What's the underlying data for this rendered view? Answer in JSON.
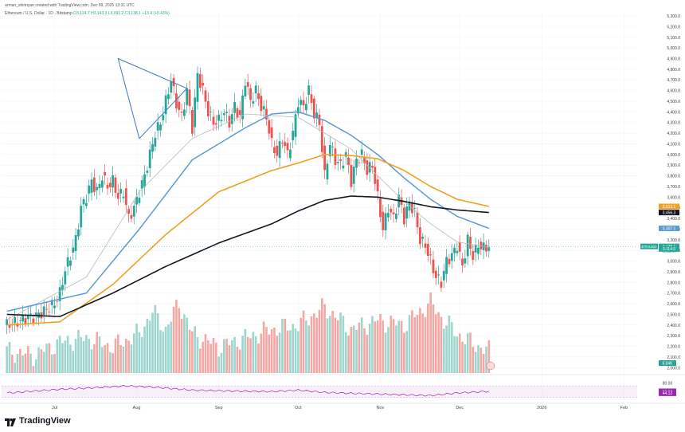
{
  "header": {
    "author_line": "arman_shirinyan created with TradingView.com, Dec 09, 2025 13:31 UTC",
    "symbol_line": "Ethereum / U.S. Dollar · 1D · Bitstamp",
    "ohlc_line": "O3,124.7 H3,143.3 L3,091.2 C3,138.1 +13.4 (+0.43%)"
  },
  "brand": {
    "name": "TradingView"
  },
  "colors": {
    "up": "#26a69a",
    "down": "#ef5350",
    "vol_up": "#9fd5cf",
    "vol_down": "#f4a8a6",
    "ma_fast": "#b5bcbc",
    "ma_mid": "#5b9bd5",
    "ma_slow": "#f0a020",
    "ma_long": "#131722",
    "triangle": "#3c78c8",
    "rsi": "#9c27b0"
  },
  "chart_data": {
    "type": "candlestick",
    "title": "Ethereum / U.S. Dollar",
    "interval": "1D",
    "exchange": "Bitstamp",
    "ylim": [
      1950,
      5330
    ],
    "price_ticks": [
      2000,
      2100,
      2200,
      2300,
      2400,
      2500,
      2600,
      2700,
      2800,
      2900,
      3000,
      3100,
      3200,
      3300,
      3400,
      3500,
      3600,
      3700,
      3800,
      3900,
      4000,
      4100,
      4200,
      4300,
      4400,
      4500,
      4600,
      4700,
      4800,
      4900,
      5000,
      5100,
      5200,
      5300
    ],
    "price_tick_labels": [
      "2,000.0",
      "2,100.0",
      "2,200.0",
      "2,300.0",
      "2,400.0",
      "2,500.0",
      "2,600.0",
      "2,700.0",
      "2,800.0",
      "2,900.0",
      "3,000.0",
      "3,100.0",
      "3,200.0",
      "3,300.0",
      "3,400.0",
      "3,500.0",
      "3,600.0",
      "3,700.0",
      "3,800.0",
      "3,900.0",
      "4,000.0",
      "4,100.0",
      "4,200.0",
      "4,300.0",
      "4,400.0",
      "4,500.0",
      "4,600.0",
      "4,700.0",
      "4,800.0",
      "4,900.0",
      "5,000.0",
      "5,100.0",
      "5,200.0",
      "5,300.0"
    ],
    "x_months": [
      {
        "label": "Jul",
        "day": 18
      },
      {
        "label": "Aug",
        "day": 49
      },
      {
        "label": "Sep",
        "day": 80
      },
      {
        "label": "Oct",
        "day": 110
      },
      {
        "label": "Nov",
        "day": 141
      },
      {
        "label": "Dec",
        "day": 171
      },
      {
        "label": "2026",
        "day": 202
      },
      {
        "label": "Feb",
        "day": 233
      }
    ],
    "last_day": 182,
    "closes": [
      [
        0,
        2400
      ],
      [
        4,
        2430
      ],
      [
        8,
        2480
      ],
      [
        10,
        2470
      ],
      [
        14,
        2530
      ],
      [
        18,
        2600
      ],
      [
        20,
        2700
      ],
      [
        22,
        2920
      ],
      [
        24,
        3050
      ],
      [
        26,
        3200
      ],
      [
        28,
        3500
      ],
      [
        30,
        3600
      ],
      [
        32,
        3750
      ],
      [
        34,
        3650
      ],
      [
        36,
        3800
      ],
      [
        38,
        3700
      ],
      [
        40,
        3750
      ],
      [
        42,
        3600
      ],
      [
        44,
        3650
      ],
      [
        46,
        3400
      ],
      [
        48,
        3500
      ],
      [
        50,
        3650
      ],
      [
        52,
        3800
      ],
      [
        54,
        4000
      ],
      [
        56,
        4200
      ],
      [
        58,
        4300
      ],
      [
        60,
        4500
      ],
      [
        62,
        4700
      ],
      [
        64,
        4480
      ],
      [
        66,
        4350
      ],
      [
        68,
        4600
      ],
      [
        70,
        4250
      ],
      [
        72,
        4750
      ],
      [
        74,
        4600
      ],
      [
        76,
        4400
      ],
      [
        78,
        4300
      ],
      [
        80,
        4320
      ],
      [
        82,
        4400
      ],
      [
        84,
        4300
      ],
      [
        86,
        4450
      ],
      [
        88,
        4350
      ],
      [
        90,
        4700
      ],
      [
        92,
        4500
      ],
      [
        94,
        4600
      ],
      [
        96,
        4450
      ],
      [
        98,
        4350
      ],
      [
        100,
        4100
      ],
      [
        102,
        4000
      ],
      [
        104,
        4150
      ],
      [
        106,
        4000
      ],
      [
        108,
        4200
      ],
      [
        110,
        4500
      ],
      [
        112,
        4450
      ],
      [
        114,
        4600
      ],
      [
        116,
        4380
      ],
      [
        118,
        4300
      ],
      [
        120,
        3800
      ],
      [
        122,
        4100
      ],
      [
        124,
        3950
      ],
      [
        126,
        3900
      ],
      [
        128,
        4000
      ],
      [
        130,
        3750
      ],
      [
        132,
        3950
      ],
      [
        134,
        4000
      ],
      [
        136,
        3850
      ],
      [
        138,
        3900
      ],
      [
        140,
        3600
      ],
      [
        142,
        3300
      ],
      [
        144,
        3500
      ],
      [
        146,
        3400
      ],
      [
        148,
        3600
      ],
      [
        150,
        3400
      ],
      [
        152,
        3550
      ],
      [
        154,
        3450
      ],
      [
        156,
        3200
      ],
      [
        158,
        3150
      ],
      [
        160,
        3000
      ],
      [
        162,
        2850
      ],
      [
        164,
        2800
      ],
      [
        166,
        3000
      ],
      [
        168,
        3050
      ],
      [
        170,
        3150
      ],
      [
        172,
        2950
      ],
      [
        174,
        3200
      ],
      [
        176,
        3050
      ],
      [
        178,
        3150
      ],
      [
        180,
        3120
      ],
      [
        182,
        3138
      ]
    ],
    "volume_max": 1,
    "volume_scale_days": [
      [
        0,
        0.25
      ],
      [
        10,
        0.2
      ],
      [
        20,
        0.35
      ],
      [
        30,
        0.4
      ],
      [
        40,
        0.3
      ],
      [
        50,
        0.45
      ],
      [
        55,
        0.7
      ],
      [
        60,
        0.5
      ],
      [
        65,
        0.8
      ],
      [
        70,
        0.45
      ],
      [
        80,
        0.3
      ],
      [
        90,
        0.4
      ],
      [
        100,
        0.5
      ],
      [
        110,
        0.55
      ],
      [
        120,
        0.75
      ],
      [
        130,
        0.5
      ],
      [
        140,
        0.6
      ],
      [
        150,
        0.55
      ],
      [
        160,
        0.8
      ],
      [
        165,
        0.6
      ],
      [
        170,
        0.45
      ],
      [
        175,
        0.35
      ],
      [
        182,
        0.25
      ]
    ],
    "series": [
      {
        "name": "",
        "key": "ma_fast",
        "values": [
          [
            0,
            2450
          ],
          [
            30,
            2850
          ],
          [
            50,
            3650
          ],
          [
            70,
            4150
          ],
          [
            90,
            4380
          ],
          [
            110,
            4350
          ],
          [
            130,
            4050
          ],
          [
            140,
            3800
          ],
          [
            150,
            3560
          ],
          [
            160,
            3350
          ],
          [
            170,
            3180
          ],
          [
            182,
            3130
          ]
        ]
      },
      {
        "name": "",
        "key": "ma_mid",
        "values": [
          [
            0,
            2530
          ],
          [
            30,
            2700
          ],
          [
            50,
            3300
          ],
          [
            70,
            3950
          ],
          [
            90,
            4250
          ],
          [
            100,
            4380
          ],
          [
            110,
            4400
          ],
          [
            120,
            4320
          ],
          [
            130,
            4180
          ],
          [
            140,
            4000
          ],
          [
            150,
            3780
          ],
          [
            160,
            3580
          ],
          [
            170,
            3420
          ],
          [
            182,
            3307
          ]
        ]
      },
      {
        "name": "",
        "key": "ma_slow",
        "values": [
          [
            0,
            2400
          ],
          [
            20,
            2430
          ],
          [
            40,
            2780
          ],
          [
            60,
            3250
          ],
          [
            80,
            3650
          ],
          [
            100,
            3850
          ],
          [
            110,
            3920
          ],
          [
            120,
            4000
          ],
          [
            130,
            3990
          ],
          [
            140,
            3960
          ],
          [
            150,
            3850
          ],
          [
            160,
            3700
          ],
          [
            170,
            3580
          ],
          [
            182,
            3513
          ]
        ]
      },
      {
        "name": "",
        "key": "ma_long",
        "values": [
          [
            0,
            2500
          ],
          [
            20,
            2480
          ],
          [
            40,
            2700
          ],
          [
            60,
            2950
          ],
          [
            80,
            3170
          ],
          [
            100,
            3350
          ],
          [
            110,
            3470
          ],
          [
            120,
            3570
          ],
          [
            130,
            3610
          ],
          [
            140,
            3600
          ],
          [
            150,
            3560
          ],
          [
            160,
            3510
          ],
          [
            170,
            3480
          ],
          [
            182,
            3456
          ]
        ]
      }
    ],
    "triangle": [
      [
        42,
        4900
      ],
      [
        68,
        4620
      ],
      [
        50,
        4150
      ]
    ],
    "price_tags": [
      {
        "value": 3513,
        "label": "3,513.1",
        "color": "#f0a020"
      },
      {
        "value": 3456,
        "label": "3,456.3",
        "color": "#131722"
      },
      {
        "value": 3307,
        "label": "3,307.1",
        "color": "#5b9bd5"
      },
      {
        "value": 3138,
        "label": "3,138.1",
        "color": "#26a69a"
      },
      {
        "value": 3114,
        "label": "3,114.0",
        "color": "#26a69a"
      }
    ],
    "symbol_tag": "ETHUSD",
    "countdown_tag": "10:28:47",
    "volume_tag": "6.04K",
    "rsi": {
      "ylim": [
        20,
        90
      ],
      "tick_labels": [
        "80.00",
        "50.93",
        "44.12"
      ],
      "upper": 70,
      "lower": 30,
      "values": [
        [
          0,
          45
        ],
        [
          20,
          58
        ],
        [
          30,
          62
        ],
        [
          45,
          70
        ],
        [
          55,
          66
        ],
        [
          70,
          55
        ],
        [
          85,
          52
        ],
        [
          100,
          50
        ],
        [
          110,
          55
        ],
        [
          120,
          47
        ],
        [
          130,
          44
        ],
        [
          145,
          40
        ],
        [
          160,
          36
        ],
        [
          170,
          45
        ],
        [
          182,
          51
        ]
      ]
    }
  }
}
